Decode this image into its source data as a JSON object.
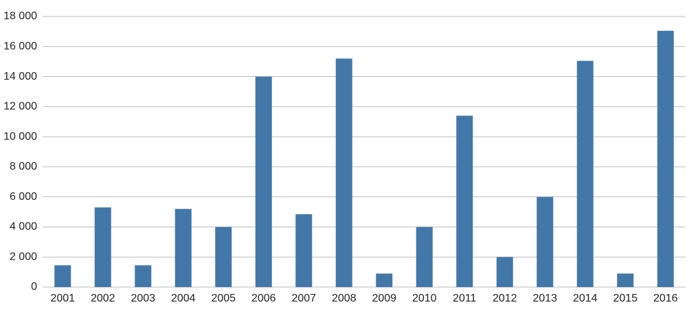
{
  "chart_data": {
    "type": "bar",
    "categories": [
      "2001",
      "2002",
      "2003",
      "2004",
      "2005",
      "2006",
      "2007",
      "2008",
      "2009",
      "2010",
      "2011",
      "2012",
      "2013",
      "2014",
      "2015",
      "2016"
    ],
    "values": [
      1450,
      5300,
      1450,
      5200,
      4000,
      14000,
      4850,
      15200,
      900,
      4000,
      11400,
      2000,
      6000,
      15050,
      900,
      17050
    ],
    "color": "#4377a8",
    "ylim": [
      0,
      18000
    ],
    "yticks": [
      0,
      {
        "value": 2000,
        "label": "2 000"
      },
      {
        "value": 4000,
        "label": "4 000"
      },
      {
        "value": 6000,
        "label": "6 000"
      },
      {
        "value": 8000,
        "label": "8 000"
      },
      {
        "value": 10000,
        "label": "10 000"
      },
      {
        "value": 12000,
        "label": "12 000"
      },
      {
        "value": 14000,
        "label": "14 000"
      },
      {
        "value": 16000,
        "label": "16 000"
      },
      {
        "value": 18000,
        "label": "18 000"
      }
    ],
    "grid": true
  }
}
